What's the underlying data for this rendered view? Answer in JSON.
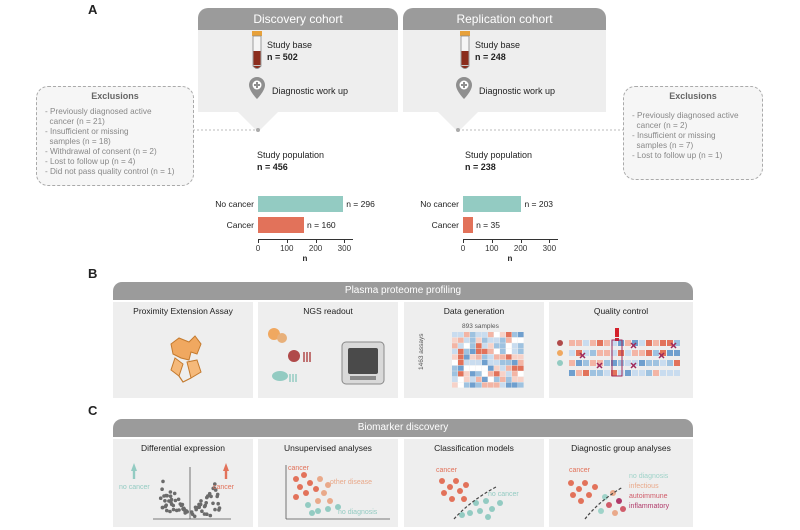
{
  "panels": {
    "a": "A",
    "b": "B",
    "c": "C"
  },
  "discovery": {
    "title": "Discovery cohort",
    "study_base": "Study base",
    "study_base_n": "n = 502",
    "workup": "Diagnostic work up",
    "population": "Study population",
    "population_n": "n = 456"
  },
  "replication": {
    "title": "Replication cohort",
    "study_base": "Study base",
    "study_base_n": "n = 248",
    "workup": "Diagnostic work up",
    "population": "Study population",
    "population_n": "n = 238"
  },
  "exclusions_left": {
    "title": "Exclusions",
    "items": [
      "- Previously diagnosed active",
      "  cancer (n = 21)",
      "- Insufficient or missing",
      "  samples (n = 18)",
      "- Withdrawal of consent (n = 2)",
      "- Lost to follow up (n = 4)",
      "- Did not pass quality control (n = 1)"
    ]
  },
  "exclusions_right": {
    "title": "Exclusions",
    "items": [
      "- Previously diagnosed active",
      "  cancer (n = 2)",
      "- Insufficient or missing",
      "  samples (n = 7)",
      "- Lost to follow up (n = 1)"
    ]
  },
  "chart_data": [
    {
      "type": "bar",
      "orientation": "horizontal",
      "categories": [
        "No cancer",
        "Cancer"
      ],
      "values": [
        296,
        160
      ],
      "value_labels": [
        "n = 296",
        "n = 160"
      ],
      "colors": [
        "#93cbc2",
        "#e2725a"
      ],
      "xlabel": "n",
      "xlim": [
        0,
        330
      ],
      "ticks": [
        "0",
        "100",
        "200",
        "300"
      ]
    },
    {
      "type": "bar",
      "orientation": "horizontal",
      "categories": [
        "No cancer",
        "Cancer"
      ],
      "values": [
        203,
        35
      ],
      "value_labels": [
        "n = 203",
        "n = 35"
      ],
      "colors": [
        "#93cbc2",
        "#e2725a"
      ],
      "xlabel": "n",
      "xlim": [
        0,
        330
      ],
      "ticks": [
        "0",
        "100",
        "200",
        "300"
      ]
    }
  ],
  "proteome": {
    "title": "Plasma proteome profiling",
    "steps": [
      "Proximity Extension Assay",
      "NGS readout",
      "Data generation",
      "Quality control"
    ],
    "samples_label": "893 samples",
    "assays_label": "1463 assays"
  },
  "biomarker": {
    "title": "Biomarker discovery",
    "steps": [
      "Differential expression",
      "Unsupervised analyses",
      "Classification models",
      "Diagnostic group analyses"
    ],
    "de_no_cancer": "no cancer",
    "de_cancer": "cancer",
    "ua_cancer": "cancer",
    "ua_other": "other disease",
    "ua_none": "no diagnosis",
    "cm_cancer": "cancer",
    "cm_no_cancer": "no cancer",
    "dg_cancer": "cancer",
    "dg_labels": [
      "no diagnosis",
      "infectious",
      "autoimmune",
      "inflammatory"
    ]
  },
  "colors": {
    "teal": "#93cbc2",
    "coral": "#e2725a",
    "grey": "#9b9b9b",
    "box": "#eeeeee"
  }
}
